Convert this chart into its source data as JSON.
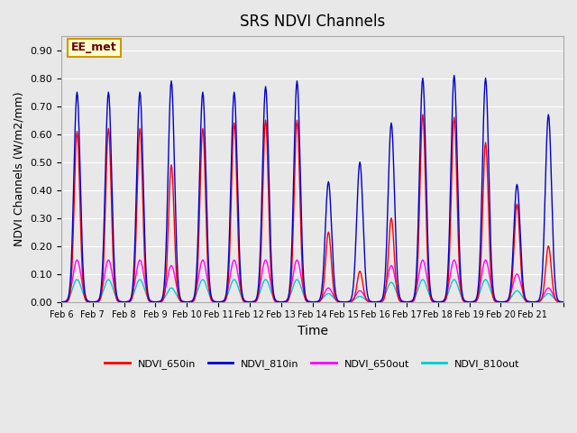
{
  "title": "SRS NDVI Channels",
  "xlabel": "Time",
  "ylabel": "NDVI Channels (W/m2/mm)",
  "ylim": [
    0.0,
    0.95
  ],
  "yticks": [
    0.0,
    0.1,
    0.2,
    0.3,
    0.4,
    0.5,
    0.6,
    0.7,
    0.8,
    0.9
  ],
  "background_color": "#e8e8e8",
  "plot_bg_color": "#e8e8e8",
  "grid_color": "white",
  "annotation_text": "EE_met",
  "annotation_bg": "#ffffcc",
  "annotation_border": "#cc9900",
  "colors": {
    "NDVI_650in": "#ff0000",
    "NDVI_810in": "#0000cc",
    "NDVI_650out": "#ff00ff",
    "NDVI_810out": "#00cccc"
  },
  "legend_labels": [
    "NDVI_650in",
    "NDVI_810in",
    "NDVI_650out",
    "NDVI_810out"
  ],
  "tick_labels": [
    "Feb 6",
    "Feb 7",
    "Feb 8",
    "Feb 9",
    "Feb 10",
    "Feb 11",
    "Feb 12",
    "Feb 13",
    "Feb 14",
    "Feb 15",
    "Feb 16",
    "Feb 17",
    "Feb 18",
    "Feb 19",
    "Feb 20",
    "Feb 21"
  ],
  "peak_650in": [
    0.61,
    0.62,
    0.62,
    0.49,
    0.62,
    0.64,
    0.65,
    0.65,
    0.25,
    0.11,
    0.3,
    0.67,
    0.66,
    0.57,
    0.35,
    0.2
  ],
  "peak_810in": [
    0.75,
    0.75,
    0.75,
    0.79,
    0.75,
    0.75,
    0.77,
    0.79,
    0.43,
    0.5,
    0.64,
    0.8,
    0.81,
    0.8,
    0.42,
    0.67
  ],
  "peak_650out": [
    0.15,
    0.15,
    0.15,
    0.13,
    0.15,
    0.15,
    0.15,
    0.15,
    0.05,
    0.04,
    0.13,
    0.15,
    0.15,
    0.15,
    0.1,
    0.05
  ],
  "peak_810out": [
    0.08,
    0.08,
    0.08,
    0.05,
    0.08,
    0.08,
    0.08,
    0.08,
    0.03,
    0.02,
    0.07,
    0.08,
    0.08,
    0.08,
    0.04,
    0.03
  ]
}
